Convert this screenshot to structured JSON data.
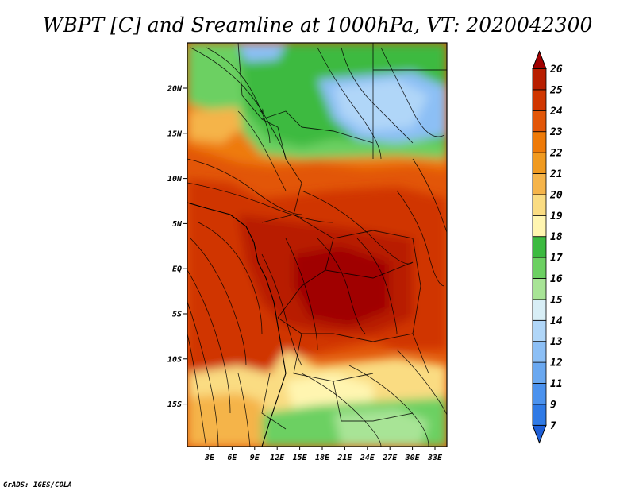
{
  "title": "WBPT [C] and Sreamline at 1000hPa, VT: 2020042300",
  "credit": "GrADS: IGES/COLA",
  "map": {
    "lat_labels": [
      "20N",
      "15N",
      "10N",
      "5N",
      "EQ",
      "5S",
      "10S",
      "15S"
    ],
    "lon_labels": [
      "3E",
      "6E",
      "9E",
      "12E",
      "15E",
      "18E",
      "21E",
      "24E",
      "27E",
      "30E",
      "33E"
    ]
  },
  "colorbar": {
    "levels": [
      "7",
      "9",
      "11",
      "12",
      "13",
      "14",
      "15",
      "16",
      "17",
      "18",
      "19",
      "20",
      "21",
      "22",
      "23",
      "24",
      "25",
      "26"
    ],
    "colors": [
      "#1e5fd8",
      "#2f7ae6",
      "#4b92ee",
      "#6aa8f0",
      "#8cbff5",
      "#b0d6f8",
      "#d8eef6",
      "#a8e496",
      "#6cd062",
      "#3cba40",
      "#fff5b0",
      "#fadc82",
      "#f5b44a",
      "#f09a20",
      "#ee7a08",
      "#e25608",
      "#d03600",
      "#b81e00",
      "#a00000"
    ]
  }
}
